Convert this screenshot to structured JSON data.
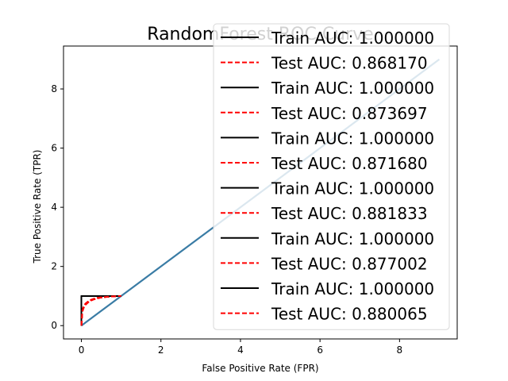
{
  "chart_data": {
    "type": "line",
    "title": "RandomForest ROC Curve",
    "xlabel": "False Positive Rate (FPR)",
    "ylabel": "True Positive Rate (TPR)",
    "xlim": [
      -0.45,
      9.45
    ],
    "ylim": [
      -0.45,
      9.45
    ],
    "xticks": [
      0,
      2,
      4,
      6,
      8
    ],
    "yticks": [
      0,
      2,
      4,
      6,
      8
    ],
    "grid": false,
    "legend_position": "upper right",
    "series": [
      {
        "name": "Train AUC: 1.000000",
        "style": "solid",
        "color": "#000000",
        "x": [
          0,
          0,
          1
        ],
        "y": [
          0,
          1,
          1
        ]
      },
      {
        "name": "Test AUC: 0.868170",
        "style": "dashed",
        "color": "#ff0000",
        "x": [
          0,
          0.02,
          0.05,
          0.1,
          0.2,
          0.3,
          0.4,
          0.5,
          0.6,
          0.7,
          0.8,
          0.9,
          1
        ],
        "y": [
          0,
          0.45,
          0.58,
          0.7,
          0.82,
          0.88,
          0.92,
          0.95,
          0.97,
          0.98,
          0.99,
          1,
          1
        ]
      },
      {
        "name": "Train AUC: 1.000000",
        "style": "solid",
        "color": "#000000",
        "x": [
          0,
          0,
          1
        ],
        "y": [
          0,
          1,
          1
        ]
      },
      {
        "name": "Test AUC: 0.873697",
        "style": "dashed",
        "color": "#ff0000",
        "x": [
          0,
          0.02,
          0.05,
          0.1,
          0.2,
          0.3,
          0.4,
          0.5,
          0.6,
          0.7,
          0.8,
          0.9,
          1
        ],
        "y": [
          0,
          0.46,
          0.6,
          0.72,
          0.83,
          0.89,
          0.93,
          0.95,
          0.97,
          0.98,
          0.99,
          1,
          1
        ]
      },
      {
        "name": "Train AUC: 1.000000",
        "style": "solid",
        "color": "#000000",
        "x": [
          0,
          0,
          1
        ],
        "y": [
          0,
          1,
          1
        ]
      },
      {
        "name": "Test AUC: 0.871680",
        "style": "dashed",
        "color": "#ff0000",
        "x": [
          0,
          0.02,
          0.05,
          0.1,
          0.2,
          0.3,
          0.4,
          0.5,
          0.6,
          0.7,
          0.8,
          0.9,
          1
        ],
        "y": [
          0,
          0.45,
          0.59,
          0.71,
          0.83,
          0.89,
          0.92,
          0.95,
          0.97,
          0.98,
          0.99,
          1,
          1
        ]
      },
      {
        "name": "Train AUC: 1.000000",
        "style": "solid",
        "color": "#000000",
        "x": [
          0,
          0,
          1
        ],
        "y": [
          0,
          1,
          1
        ]
      },
      {
        "name": "Test AUC: 0.881833",
        "style": "dashed",
        "color": "#ff0000",
        "x": [
          0,
          0.02,
          0.05,
          0.1,
          0.2,
          0.3,
          0.4,
          0.5,
          0.6,
          0.7,
          0.8,
          0.9,
          1
        ],
        "y": [
          0,
          0.48,
          0.62,
          0.74,
          0.85,
          0.9,
          0.94,
          0.96,
          0.97,
          0.98,
          0.99,
          1,
          1
        ]
      },
      {
        "name": "Train AUC: 1.000000",
        "style": "solid",
        "color": "#000000",
        "x": [
          0,
          0,
          1
        ],
        "y": [
          0,
          1,
          1
        ]
      },
      {
        "name": "Test AUC: 0.877002",
        "style": "dashed",
        "color": "#ff0000",
        "x": [
          0,
          0.02,
          0.05,
          0.1,
          0.2,
          0.3,
          0.4,
          0.5,
          0.6,
          0.7,
          0.8,
          0.9,
          1
        ],
        "y": [
          0,
          0.47,
          0.61,
          0.73,
          0.84,
          0.9,
          0.93,
          0.95,
          0.97,
          0.98,
          0.99,
          1,
          1
        ]
      },
      {
        "name": "Train AUC: 1.000000",
        "style": "solid",
        "color": "#000000",
        "x": [
          0,
          0,
          1
        ],
        "y": [
          0,
          1,
          1
        ]
      },
      {
        "name": "Test AUC: 0.880065",
        "style": "dashed",
        "color": "#ff0000",
        "x": [
          0,
          0.02,
          0.05,
          0.1,
          0.2,
          0.3,
          0.4,
          0.5,
          0.6,
          0.7,
          0.8,
          0.9,
          1
        ],
        "y": [
          0,
          0.48,
          0.62,
          0.74,
          0.85,
          0.9,
          0.94,
          0.96,
          0.97,
          0.98,
          0.99,
          1,
          1
        ]
      }
    ],
    "reference_line": {
      "color": "#3a7ca5",
      "x": [
        0,
        9
      ],
      "y": [
        0,
        9
      ]
    }
  }
}
